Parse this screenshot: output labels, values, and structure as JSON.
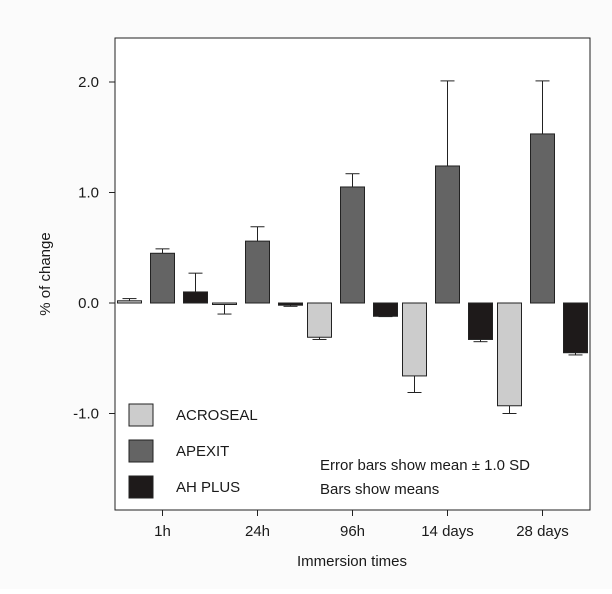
{
  "chart_data": {
    "type": "bar",
    "xlabel": "Immersion times",
    "ylabel": "% of change",
    "categories": [
      "1h",
      "24h",
      "96h",
      "14 days",
      "28 days"
    ],
    "ylim": [
      -1.65,
      2.4
    ],
    "yticks": [
      2.0,
      1.0,
      0.0,
      -1.0
    ],
    "ytick_labels": [
      "2.0",
      "1.0",
      "0.0",
      "-1.0"
    ],
    "series": [
      {
        "name": "ACROSEAL",
        "color": "#cccccc",
        "values": [
          0.02,
          -0.01,
          -0.31,
          -0.66,
          -0.93
        ],
        "sd": [
          0.02,
          0.09,
          0.02,
          0.15,
          0.07
        ]
      },
      {
        "name": "APEXIT",
        "color": "#646464",
        "values": [
          0.45,
          0.56,
          1.05,
          1.24,
          1.53
        ],
        "sd": [
          0.04,
          0.13,
          0.12,
          0.77,
          0.48
        ]
      },
      {
        "name": "AH PLUS",
        "color": "#1e1a1a",
        "values": [
          0.1,
          -0.02,
          -0.12,
          -0.33,
          -0.45
        ],
        "sd": [
          0.17,
          0.01,
          0.003,
          0.02,
          0.02
        ]
      }
    ],
    "notes": [
      "Error bars show mean ± 1.0 SD",
      "Bars show means"
    ],
    "legend_position": "bottom-left",
    "grid": false
  }
}
